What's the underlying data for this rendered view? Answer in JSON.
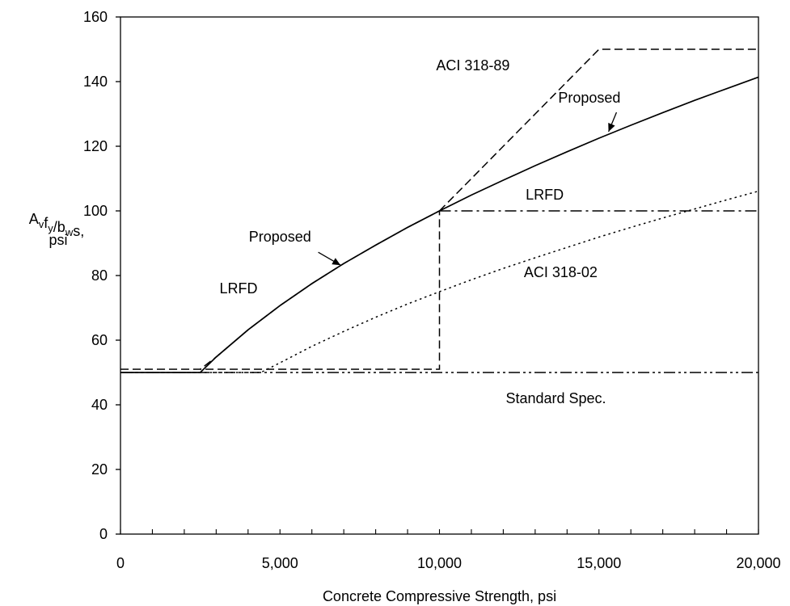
{
  "chart_data": {
    "type": "line",
    "xlabel": "Concrete Compressive Strength, psi",
    "ylabel_lines": [
      "A_v f_y / b_w s,",
      "psi"
    ],
    "xlim": [
      0,
      20000
    ],
    "ylim": [
      0,
      160
    ],
    "x_ticks": [
      0,
      5000,
      10000,
      15000,
      20000
    ],
    "x_tick_labels": [
      "0",
      "5,000",
      "10,000",
      "15,000",
      "20,000"
    ],
    "x_minor_tick_step": 1000,
    "y_ticks": [
      0,
      20,
      40,
      60,
      80,
      100,
      120,
      140,
      160
    ],
    "y_tick_labels": [
      "0",
      "20",
      "40",
      "60",
      "80",
      "100",
      "120",
      "140",
      "160"
    ],
    "grid": false,
    "series": [
      {
        "name": "Proposed",
        "style": "solid",
        "color": "#000000",
        "x": [
          0,
          2500,
          3000,
          4000,
          5000,
          6000,
          7000,
          8000,
          9000,
          10000,
          11000,
          12000,
          13000,
          14000,
          15000,
          16000,
          17000,
          18000,
          19000,
          20000
        ],
        "y": [
          50,
          50,
          54.8,
          63.2,
          70.7,
          77.5,
          83.7,
          89.4,
          94.9,
          100,
          104.9,
          109.5,
          114,
          118.3,
          122.5,
          126.5,
          130.4,
          134.2,
          137.8,
          141.4
        ]
      },
      {
        "name": "LRFD",
        "style": "dash",
        "color": "#000000",
        "x": [
          0,
          2500,
          3000,
          4000,
          5000,
          6000,
          7000,
          8000,
          9000,
          10000,
          10000,
          0
        ],
        "y": [
          51,
          51,
          54.8,
          63.2,
          70.7,
          77.5,
          83.7,
          89.4,
          94.9,
          100,
          51,
          51
        ]
      },
      {
        "name": "LRFD",
        "style": "dashdot",
        "color": "#000000",
        "x": [
          10000,
          20000
        ],
        "y": [
          100,
          100
        ]
      },
      {
        "name": "ACI 318-89",
        "style": "dash",
        "color": "#000000",
        "x": [
          10000,
          11000,
          12000,
          13000,
          14000,
          15000,
          20000
        ],
        "y": [
          100,
          110,
          120,
          130,
          140,
          150,
          150
        ]
      },
      {
        "name": "ACI 318-02",
        "style": "dot",
        "color": "#000000",
        "x": [
          0,
          4400,
          5000,
          6000,
          7000,
          8000,
          9000,
          10000,
          11000,
          12000,
          13000,
          14000,
          15000,
          16000,
          17000,
          18000,
          19000,
          20000
        ],
        "y": [
          50,
          50,
          53,
          58.1,
          62.7,
          67.1,
          71.2,
          75,
          78.7,
          82.2,
          85.5,
          88.7,
          91.9,
          94.9,
          97.8,
          100.6,
          103.4,
          106.1
        ]
      },
      {
        "name": "Standard Spec.",
        "style": "dashdotdot",
        "color": "#000000",
        "x": [
          0,
          20000
        ],
        "y": [
          50,
          50
        ]
      }
    ],
    "annotations": [
      {
        "text": "ACI 318-89",
        "x": 11050,
        "y": 143.5
      },
      {
        "text": "Proposed",
        "x": 14700,
        "y": 133.5
      },
      {
        "text": "LRFD",
        "x": 13300,
        "y": 103.5
      },
      {
        "text": "ACI 318-02",
        "x": 13800,
        "y": 79.5
      },
      {
        "text": "Proposed",
        "x": 5000,
        "y": 90.5
      },
      {
        "text": "LRFD",
        "x": 3700,
        "y": 74.5
      },
      {
        "text": "Standard  Spec.",
        "x": 13650,
        "y": 40.5
      }
    ],
    "arrows": [
      {
        "from": [
          15550,
          124
        ],
        "to": [
          15300,
          125
        ]
      },
      {
        "from": [
          6700,
          84
        ],
        "to": [
          6700,
          84
        ]
      }
    ]
  }
}
